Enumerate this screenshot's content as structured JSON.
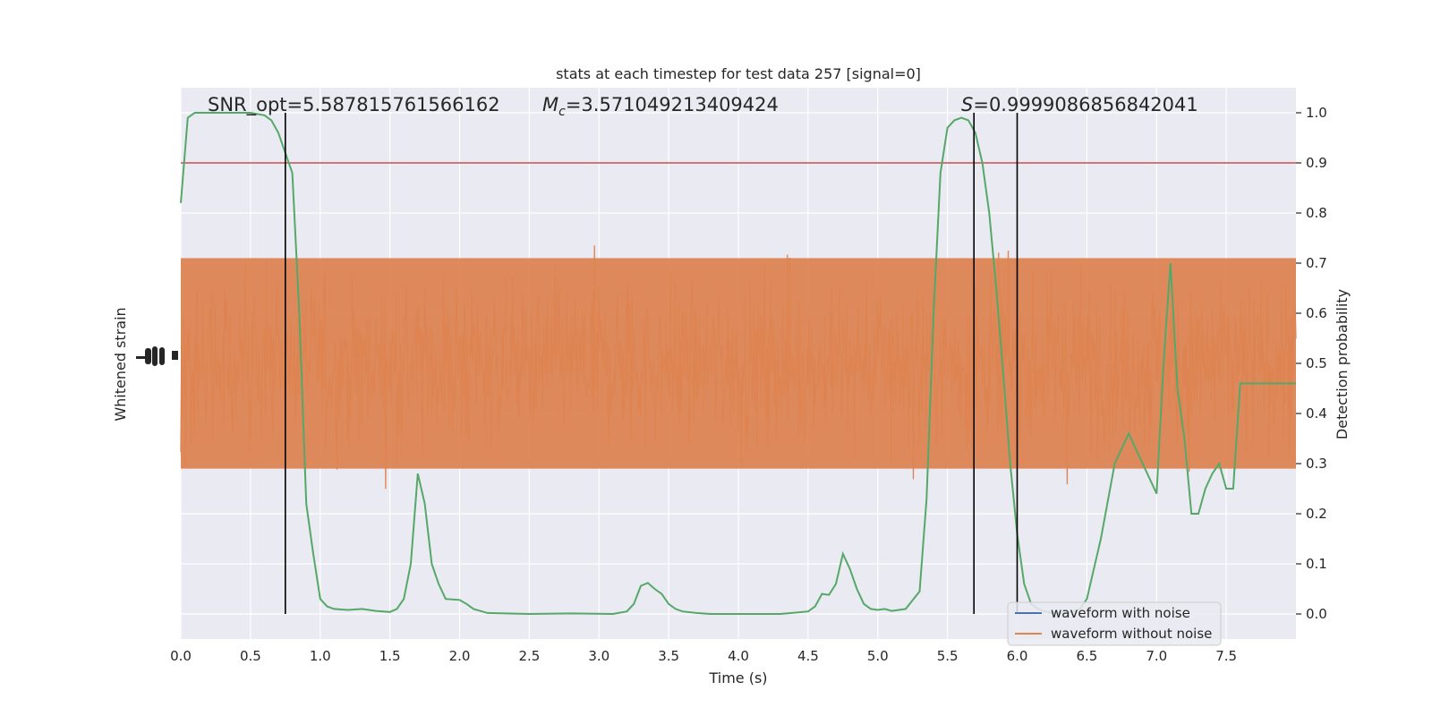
{
  "chart_data": {
    "type": "line",
    "title": "stats at each timestep for test data 257 [signal=0]",
    "xlabel": "Time (s)",
    "ylabel_left": "Whitened strain",
    "ylabel_right": "Detection probability",
    "xlim": [
      0.0,
      8.0
    ],
    "ylim_right": [
      -0.05,
      1.05
    ],
    "x_ticks": [
      "0.0",
      "0.5",
      "1.0",
      "1.5",
      "2.0",
      "2.5",
      "3.0",
      "3.5",
      "4.0",
      "4.5",
      "5.0",
      "5.5",
      "6.0",
      "6.5",
      "7.0",
      "7.5"
    ],
    "y_right_ticks": [
      "0.0",
      "0.1",
      "0.2",
      "0.3",
      "0.4",
      "0.5",
      "0.6",
      "0.7",
      "0.8",
      "0.9",
      "1.0"
    ],
    "grid": true,
    "legend_position": "lower-right",
    "annotations": {
      "snr": "SNR_opt=5.587815761566162",
      "mc_symbol": "M",
      "mc_subscript": "c",
      "mc_value": "=3.571049213409424",
      "s_symbol": "S",
      "s_value": "=0.9999086856842041"
    },
    "threshold": 0.9,
    "vertical_lines": [
      0.75,
      5.69,
      6.0
    ],
    "series": [
      {
        "name": "waveform with noise",
        "color": "#4c72b0",
        "noise_center": 0.5,
        "noise_core_halfwidth": 0.21,
        "noise_extreme": 0.5
      },
      {
        "name": "waveform without noise",
        "color": "#dd8452",
        "noise_center": 0.5,
        "noise_core_halfwidth": 0.21,
        "noise_extreme": 0.5
      },
      {
        "name": "detection probability",
        "color": "#55a868",
        "x": [
          0.0,
          0.05,
          0.1,
          0.2,
          0.3,
          0.4,
          0.5,
          0.6,
          0.65,
          0.7,
          0.75,
          0.8,
          0.85,
          0.9,
          0.95,
          1.0,
          1.05,
          1.1,
          1.2,
          1.3,
          1.4,
          1.5,
          1.55,
          1.6,
          1.65,
          1.7,
          1.75,
          1.8,
          1.85,
          1.9,
          2.0,
          2.05,
          2.1,
          2.2,
          2.5,
          2.8,
          3.1,
          3.2,
          3.25,
          3.3,
          3.35,
          3.4,
          3.45,
          3.5,
          3.55,
          3.6,
          3.7,
          3.8,
          4.0,
          4.3,
          4.5,
          4.55,
          4.6,
          4.65,
          4.7,
          4.75,
          4.8,
          4.85,
          4.9,
          4.95,
          5.0,
          5.05,
          5.1,
          5.2,
          5.3,
          5.35,
          5.4,
          5.45,
          5.5,
          5.55,
          5.6,
          5.65,
          5.7,
          5.75,
          5.8,
          5.85,
          5.9,
          5.95,
          6.0,
          6.05,
          6.1,
          6.15,
          6.2,
          6.25,
          6.3,
          6.35,
          6.4,
          6.45,
          6.5,
          6.6,
          6.7,
          6.8,
          6.9,
          7.0,
          7.05,
          7.1,
          7.15,
          7.2,
          7.25,
          7.3,
          7.35,
          7.4,
          7.45,
          7.5,
          7.55,
          7.6,
          7.65,
          7.7,
          7.75,
          7.8,
          7.85,
          7.9,
          7.95,
          8.0
        ],
        "y": [
          0.82,
          0.99,
          1.0,
          1.0,
          1.0,
          1.0,
          1.0,
          0.995,
          0.985,
          0.96,
          0.92,
          0.88,
          0.6,
          0.22,
          0.12,
          0.03,
          0.015,
          0.01,
          0.008,
          0.01,
          0.006,
          0.004,
          0.01,
          0.03,
          0.1,
          0.28,
          0.22,
          0.1,
          0.06,
          0.03,
          0.028,
          0.02,
          0.01,
          0.002,
          0.0,
          0.001,
          0.0,
          0.005,
          0.02,
          0.056,
          0.062,
          0.05,
          0.04,
          0.02,
          0.01,
          0.005,
          0.002,
          0.0,
          0.0,
          0.0,
          0.005,
          0.015,
          0.04,
          0.038,
          0.06,
          0.12,
          0.09,
          0.05,
          0.02,
          0.01,
          0.008,
          0.01,
          0.006,
          0.01,
          0.045,
          0.23,
          0.6,
          0.88,
          0.97,
          0.985,
          0.99,
          0.985,
          0.96,
          0.9,
          0.8,
          0.65,
          0.48,
          0.3,
          0.16,
          0.06,
          0.02,
          0.01,
          0.005,
          0.002,
          0.001,
          0.002,
          0.005,
          0.01,
          0.03,
          0.15,
          0.3,
          0.36,
          0.3,
          0.24,
          0.5,
          0.7,
          0.45,
          0.35,
          0.2,
          0.2,
          0.25,
          0.28,
          0.3,
          0.25,
          0.25,
          0.46,
          0.46,
          0.46,
          0.46,
          0.46,
          0.46,
          0.46,
          0.46,
          0.46
        ]
      }
    ]
  }
}
